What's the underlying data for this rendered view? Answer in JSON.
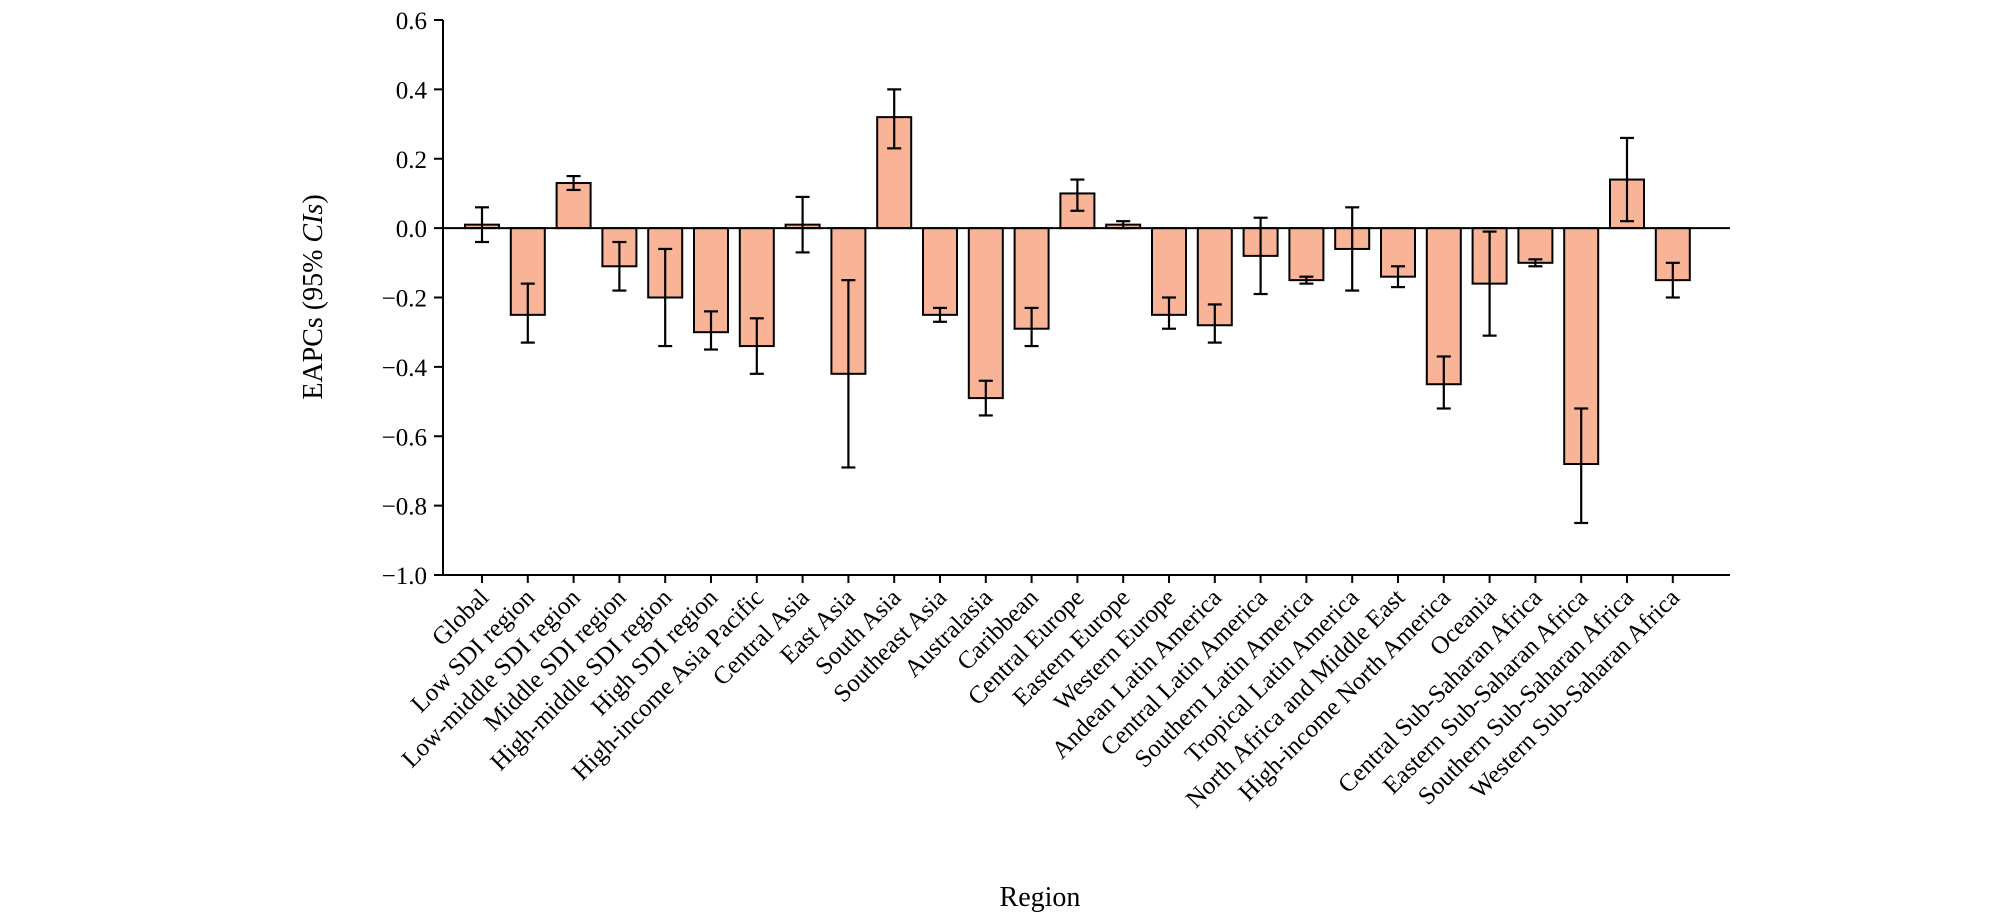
{
  "chart_data": {
    "type": "bar",
    "title": "",
    "xlabel": "Region",
    "ylabel_main": "EAPCs (95% ",
    "ylabel_italic": "CIs",
    "ylabel_close": ")",
    "ylim": [
      -1.0,
      0.6
    ],
    "yticks": [
      0.6,
      0.4,
      0.2,
      0.0,
      -0.2,
      -0.4,
      -0.6,
      -0.8,
      -1.0
    ],
    "ytick_labels": [
      "0.6",
      "0.4",
      "0.2",
      "0.0",
      "−0.2",
      "−0.4",
      "−0.6",
      "−0.8",
      "−1.0"
    ],
    "grid": false,
    "bar_color": "#F9B497",
    "categories": [
      "Global",
      "Low SDI region",
      "Low-middle SDI region",
      "Middle SDI region",
      "High-middle SDI region",
      "High SDI region",
      "High-income Asia Pacific",
      "Central Asia",
      "East Asia",
      "South Asia",
      "Southeast Asia",
      "Australasia",
      "Caribbean",
      "Central Europe",
      "Eastern Europe",
      "Western Europe",
      "Andean Latin America",
      "Central Latin America",
      "Southern Latin America",
      "Tropical Latin America",
      "North Africa and Middle East",
      "High-income North America",
      "Oceania",
      "Central Sub-Saharan Africa",
      "Eastern Sub-Saharan Africa",
      "Southern Sub-Saharan Africa",
      "Western Sub-Saharan Africa"
    ],
    "values": [
      0.01,
      -0.25,
      0.13,
      -0.11,
      -0.2,
      -0.3,
      -0.34,
      0.01,
      -0.42,
      0.32,
      -0.25,
      -0.49,
      -0.29,
      0.1,
      0.01,
      -0.25,
      -0.28,
      -0.08,
      -0.15,
      -0.06,
      -0.14,
      -0.45,
      -0.16,
      -0.1,
      -0.68,
      0.14,
      -0.15
    ],
    "ci_lower": [
      -0.04,
      -0.33,
      0.11,
      -0.18,
      -0.34,
      -0.35,
      -0.42,
      -0.07,
      -0.69,
      0.23,
      -0.27,
      -0.54,
      -0.34,
      0.05,
      0.0,
      -0.29,
      -0.33,
      -0.19,
      -0.16,
      -0.18,
      -0.17,
      -0.52,
      -0.31,
      -0.11,
      -0.85,
      0.02,
      -0.2
    ],
    "ci_upper": [
      0.06,
      -0.16,
      0.15,
      -0.04,
      -0.06,
      -0.24,
      -0.26,
      0.09,
      -0.15,
      0.4,
      -0.23,
      -0.44,
      -0.23,
      0.14,
      0.02,
      -0.2,
      -0.22,
      0.03,
      -0.14,
      0.06,
      -0.11,
      -0.37,
      -0.01,
      -0.09,
      -0.52,
      0.26,
      -0.1
    ]
  }
}
